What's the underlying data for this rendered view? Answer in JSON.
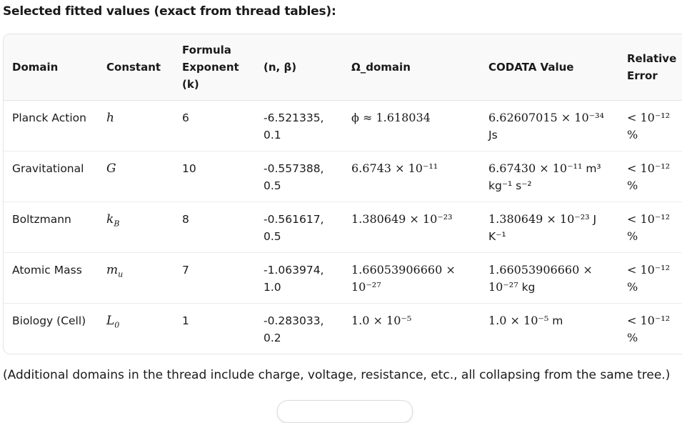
{
  "heading": "Selected fitted values (exact from thread tables):",
  "table": {
    "columns": [
      "Domain",
      "Constant",
      "Formula Exponent (k)",
      "(n, β)",
      "Ω_domain",
      "CODATA Value",
      "Relative Error"
    ],
    "rows": [
      {
        "domain": "Planck Action",
        "constant": {
          "base": "h",
          "sub": ""
        },
        "k": "6",
        "n_beta": "-6.521335, 0.1",
        "omega": "ϕ ≈ 1.618034",
        "codata": {
          "value": "6.62607015 × 10⁻³⁴",
          "unit": "Js"
        },
        "error": "< 10⁻¹² %"
      },
      {
        "domain": "Gravitational",
        "constant": {
          "base": "G",
          "sub": ""
        },
        "k": "10",
        "n_beta": "-0.557388, 0.5",
        "omega": "6.6743 × 10⁻¹¹",
        "codata": {
          "value": "6.67430 × 10⁻¹¹",
          "unit": "m³ kg⁻¹ s⁻²"
        },
        "error": "< 10⁻¹² %"
      },
      {
        "domain": "Boltzmann",
        "constant": {
          "base": "k",
          "sub": "B"
        },
        "k": "8",
        "n_beta": "-0.561617, 0.5",
        "omega": "1.380649 × 10⁻²³",
        "codata": {
          "value": "1.380649 × 10⁻²³",
          "unit": "J K⁻¹"
        },
        "error": "< 10⁻¹² %"
      },
      {
        "domain": "Atomic Mass",
        "constant": {
          "base": "m",
          "sub": "u"
        },
        "k": "7",
        "n_beta": "-1.063974, 1.0",
        "omega": "1.66053906660 × 10⁻²⁷",
        "codata": {
          "value": "1.66053906660 × 10⁻²⁷",
          "unit": "kg"
        },
        "error": "< 10⁻¹² %"
      },
      {
        "domain": "Biology (Cell)",
        "constant": {
          "base": "L",
          "sub": "0"
        },
        "k": "1",
        "n_beta": "-0.283033, 0.2",
        "omega": "1.0 × 10⁻⁵",
        "codata": {
          "value": "1.0 × 10⁻⁵",
          "unit": "m"
        },
        "error": "< 10⁻¹² %"
      }
    ]
  },
  "note": "(Additional domains in the thread include charge, voltage, resistance, etc., all collapsing from the same tree.)"
}
